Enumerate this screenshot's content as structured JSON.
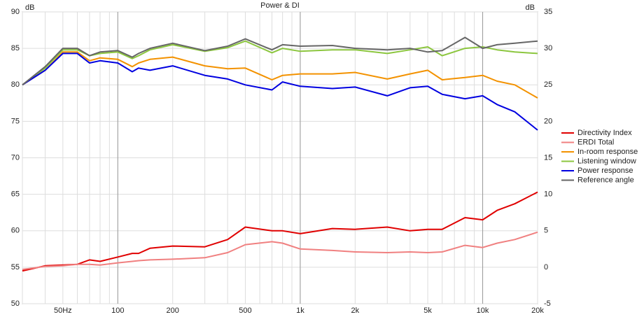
{
  "chart_data": {
    "type": "line",
    "title": "Power & DI",
    "ylabel": "dB",
    "y2label": "dB",
    "xscale": "log",
    "xlim": [
      30,
      20000
    ],
    "ylim": [
      50,
      90
    ],
    "y2lim": [
      -5,
      35
    ],
    "xticks": [
      {
        "value": 50,
        "label": "50Hz"
      },
      100,
      200,
      500,
      {
        "value": 1000,
        "label": "1k"
      },
      {
        "value": 2000,
        "label": "2k"
      },
      {
        "value": 5000,
        "label": "5k"
      },
      {
        "value": 10000,
        "label": "10k"
      },
      {
        "value": 20000,
        "label": "20k"
      }
    ],
    "xminorticks": [
      30,
      40,
      60,
      70,
      80,
      90,
      300,
      400,
      600,
      700,
      800,
      900,
      3000,
      4000,
      6000,
      7000,
      8000,
      9000
    ],
    "xmajorlines": [
      100,
      1000,
      10000
    ],
    "yticks": [
      50,
      55,
      60,
      65,
      70,
      75,
      80,
      85,
      90
    ],
    "y2ticks": [
      -5,
      0,
      5,
      10,
      15,
      20,
      25,
      30,
      35
    ],
    "grid": true,
    "legend": "right",
    "x": [
      30,
      40,
      50,
      60,
      70,
      80,
      100,
      120,
      130,
      150,
      200,
      300,
      400,
      500,
      700,
      800,
      1000,
      1500,
      2000,
      3000,
      4000,
      5000,
      6000,
      8000,
      10000,
      12000,
      15000,
      20000
    ],
    "series": [
      {
        "name": "Directivity Index",
        "color": "#e00000",
        "axis": "y2",
        "values": [
          -0.5,
          0.2,
          0.3,
          0.4,
          1,
          0.8,
          1.4,
          1.9,
          1.9,
          2.6,
          2.9,
          2.8,
          3.8,
          5.5,
          5,
          5,
          4.6,
          5.3,
          5.2,
          5.5,
          5,
          5.2,
          5.2,
          6.8,
          6.5,
          7.8,
          8.7,
          10.3
        ]
      },
      {
        "name": "ERDI Total",
        "color": "#f08080",
        "axis": "y2",
        "values": [
          -0.3,
          0.1,
          0.2,
          0.4,
          0.4,
          0.3,
          0.6,
          0.8,
          0.9,
          1,
          1.1,
          1.3,
          2,
          3.1,
          3.5,
          3.3,
          2.5,
          2.3,
          2.1,
          2,
          2.1,
          2,
          2.1,
          3,
          2.7,
          3.3,
          3.8,
          4.8
        ]
      },
      {
        "name": "In-room response",
        "color": "#f39200",
        "values": [
          80,
          82,
          84.5,
          84.5,
          83.3,
          83.7,
          83.5,
          82.5,
          83,
          83.5,
          83.8,
          82.6,
          82.2,
          82.3,
          80.7,
          81.3,
          81.5,
          81.5,
          81.7,
          80.8,
          81.5,
          82,
          80.7,
          81,
          81.3,
          80.5,
          80,
          78.2
        ]
      },
      {
        "name": "Listening window",
        "color": "#8cc63f",
        "values": [
          80,
          82.3,
          84.8,
          84.8,
          84,
          84.3,
          84.5,
          83.6,
          84,
          84.8,
          85.5,
          84.6,
          85.1,
          86,
          84.4,
          85,
          84.6,
          84.8,
          84.8,
          84.3,
          84.8,
          85.2,
          84,
          85,
          85.2,
          84.8,
          84.5,
          84.3
        ]
      },
      {
        "name": "Power response",
        "color": "#0000e0",
        "values": [
          80,
          82,
          84.3,
          84.3,
          83,
          83.3,
          83,
          81.8,
          82.3,
          82,
          82.6,
          81.3,
          80.8,
          80,
          79.3,
          80.4,
          79.8,
          79.5,
          79.7,
          78.5,
          79.6,
          79.8,
          78.7,
          78.1,
          78.5,
          77.3,
          76.3,
          73.8
        ]
      },
      {
        "name": "Reference angle",
        "color": "#666666",
        "values": [
          80,
          82.5,
          85,
          85,
          84,
          84.5,
          84.7,
          83.8,
          84.3,
          85,
          85.7,
          84.7,
          85.3,
          86.3,
          84.8,
          85.5,
          85.3,
          85.4,
          85,
          84.8,
          85,
          84.5,
          84.7,
          86.5,
          85,
          85.5,
          85.7,
          86
        ]
      }
    ]
  }
}
